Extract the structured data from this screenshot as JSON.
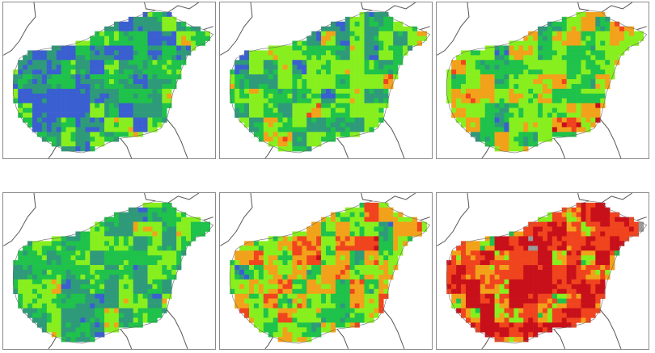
{
  "figure": {
    "panels": [
      {
        "id": "panel-1",
        "palette": {
          "heavy": "#3a5fd0",
          "wet": "#2e9a7a",
          "near": "#1fc24a",
          "dry": "#88ef1e",
          "drier": "#f2a21a",
          "hot": "#f0441e",
          "extreme": "#c8101a",
          "peak": "#b06cf0",
          "na": "#9a9a9a"
        },
        "weights": {
          "heavy": 0.28,
          "wet": 0.22,
          "near": 0.22,
          "dry": 0.22,
          "drier": 0.04,
          "hot": 0.02,
          "extreme": 0.0,
          "peak": 0.01,
          "na": 0.0
        }
      },
      {
        "id": "panel-2",
        "palette": {
          "heavy": "#3a5fd0",
          "wet": "#2e9a7a",
          "near": "#1fc24a",
          "dry": "#88ef1e",
          "drier": "#f2a21a",
          "hot": "#f0441e",
          "extreme": "#c8101a",
          "peak": "#b06cf0",
          "na": "#9a9a9a"
        },
        "weights": {
          "heavy": 0.12,
          "wet": 0.2,
          "near": 0.22,
          "dry": 0.32,
          "drier": 0.1,
          "hot": 0.04,
          "extreme": 0.0,
          "peak": 0.0,
          "na": 0.0
        }
      },
      {
        "id": "panel-3",
        "palette": {
          "heavy": "#3a5fd0",
          "wet": "#2e9a7a",
          "near": "#1fc24a",
          "dry": "#88ef1e",
          "drier": "#f2a21a",
          "hot": "#f0441e",
          "extreme": "#c8101a",
          "peak": "#b06cf0",
          "na": "#9a9a9a"
        },
        "weights": {
          "heavy": 0.04,
          "wet": 0.1,
          "near": 0.2,
          "dry": 0.32,
          "drier": 0.24,
          "hot": 0.08,
          "extreme": 0.02,
          "peak": 0.0,
          "na": 0.0
        }
      },
      {
        "id": "panel-4",
        "palette": {
          "heavy": "#3a5fd0",
          "wet": "#2e9a7a",
          "near": "#1fc24a",
          "dry": "#88ef1e",
          "drier": "#f2a21a",
          "hot": "#f0441e",
          "extreme": "#c8101a",
          "peak": "#b06cf0",
          "na": "#9a9a9a"
        },
        "weights": {
          "heavy": 0.18,
          "wet": 0.28,
          "near": 0.22,
          "dry": 0.24,
          "drier": 0.06,
          "hot": 0.01,
          "extreme": 0.0,
          "peak": 0.01,
          "na": 0.0
        }
      },
      {
        "id": "panel-5",
        "palette": {
          "heavy": "#3a5fd0",
          "wet": "#2e9a7a",
          "near": "#1fc24a",
          "dry": "#88ef1e",
          "drier": "#f2a21a",
          "hot": "#f0441e",
          "extreme": "#c8101a",
          "peak": "#b06cf0",
          "na": "#9a9a9a"
        },
        "weights": {
          "heavy": 0.06,
          "wet": 0.1,
          "near": 0.18,
          "dry": 0.2,
          "drier": 0.22,
          "hot": 0.2,
          "extreme": 0.02,
          "peak": 0.0,
          "na": 0.02
        }
      },
      {
        "id": "panel-6",
        "palette": {
          "heavy": "#3a5fd0",
          "wet": "#2e9a7a",
          "near": "#1fc24a",
          "dry": "#88ef1e",
          "drier": "#f2a21a",
          "hot": "#f0441e",
          "extreme": "#c8101a",
          "peak": "#b06cf0",
          "na": "#9a9a9a"
        },
        "weights": {
          "heavy": 0.0,
          "wet": 0.02,
          "near": 0.06,
          "dry": 0.1,
          "drier": 0.1,
          "hot": 0.28,
          "extreme": 0.38,
          "peak": 0.0,
          "na": 0.06
        }
      }
    ]
  }
}
